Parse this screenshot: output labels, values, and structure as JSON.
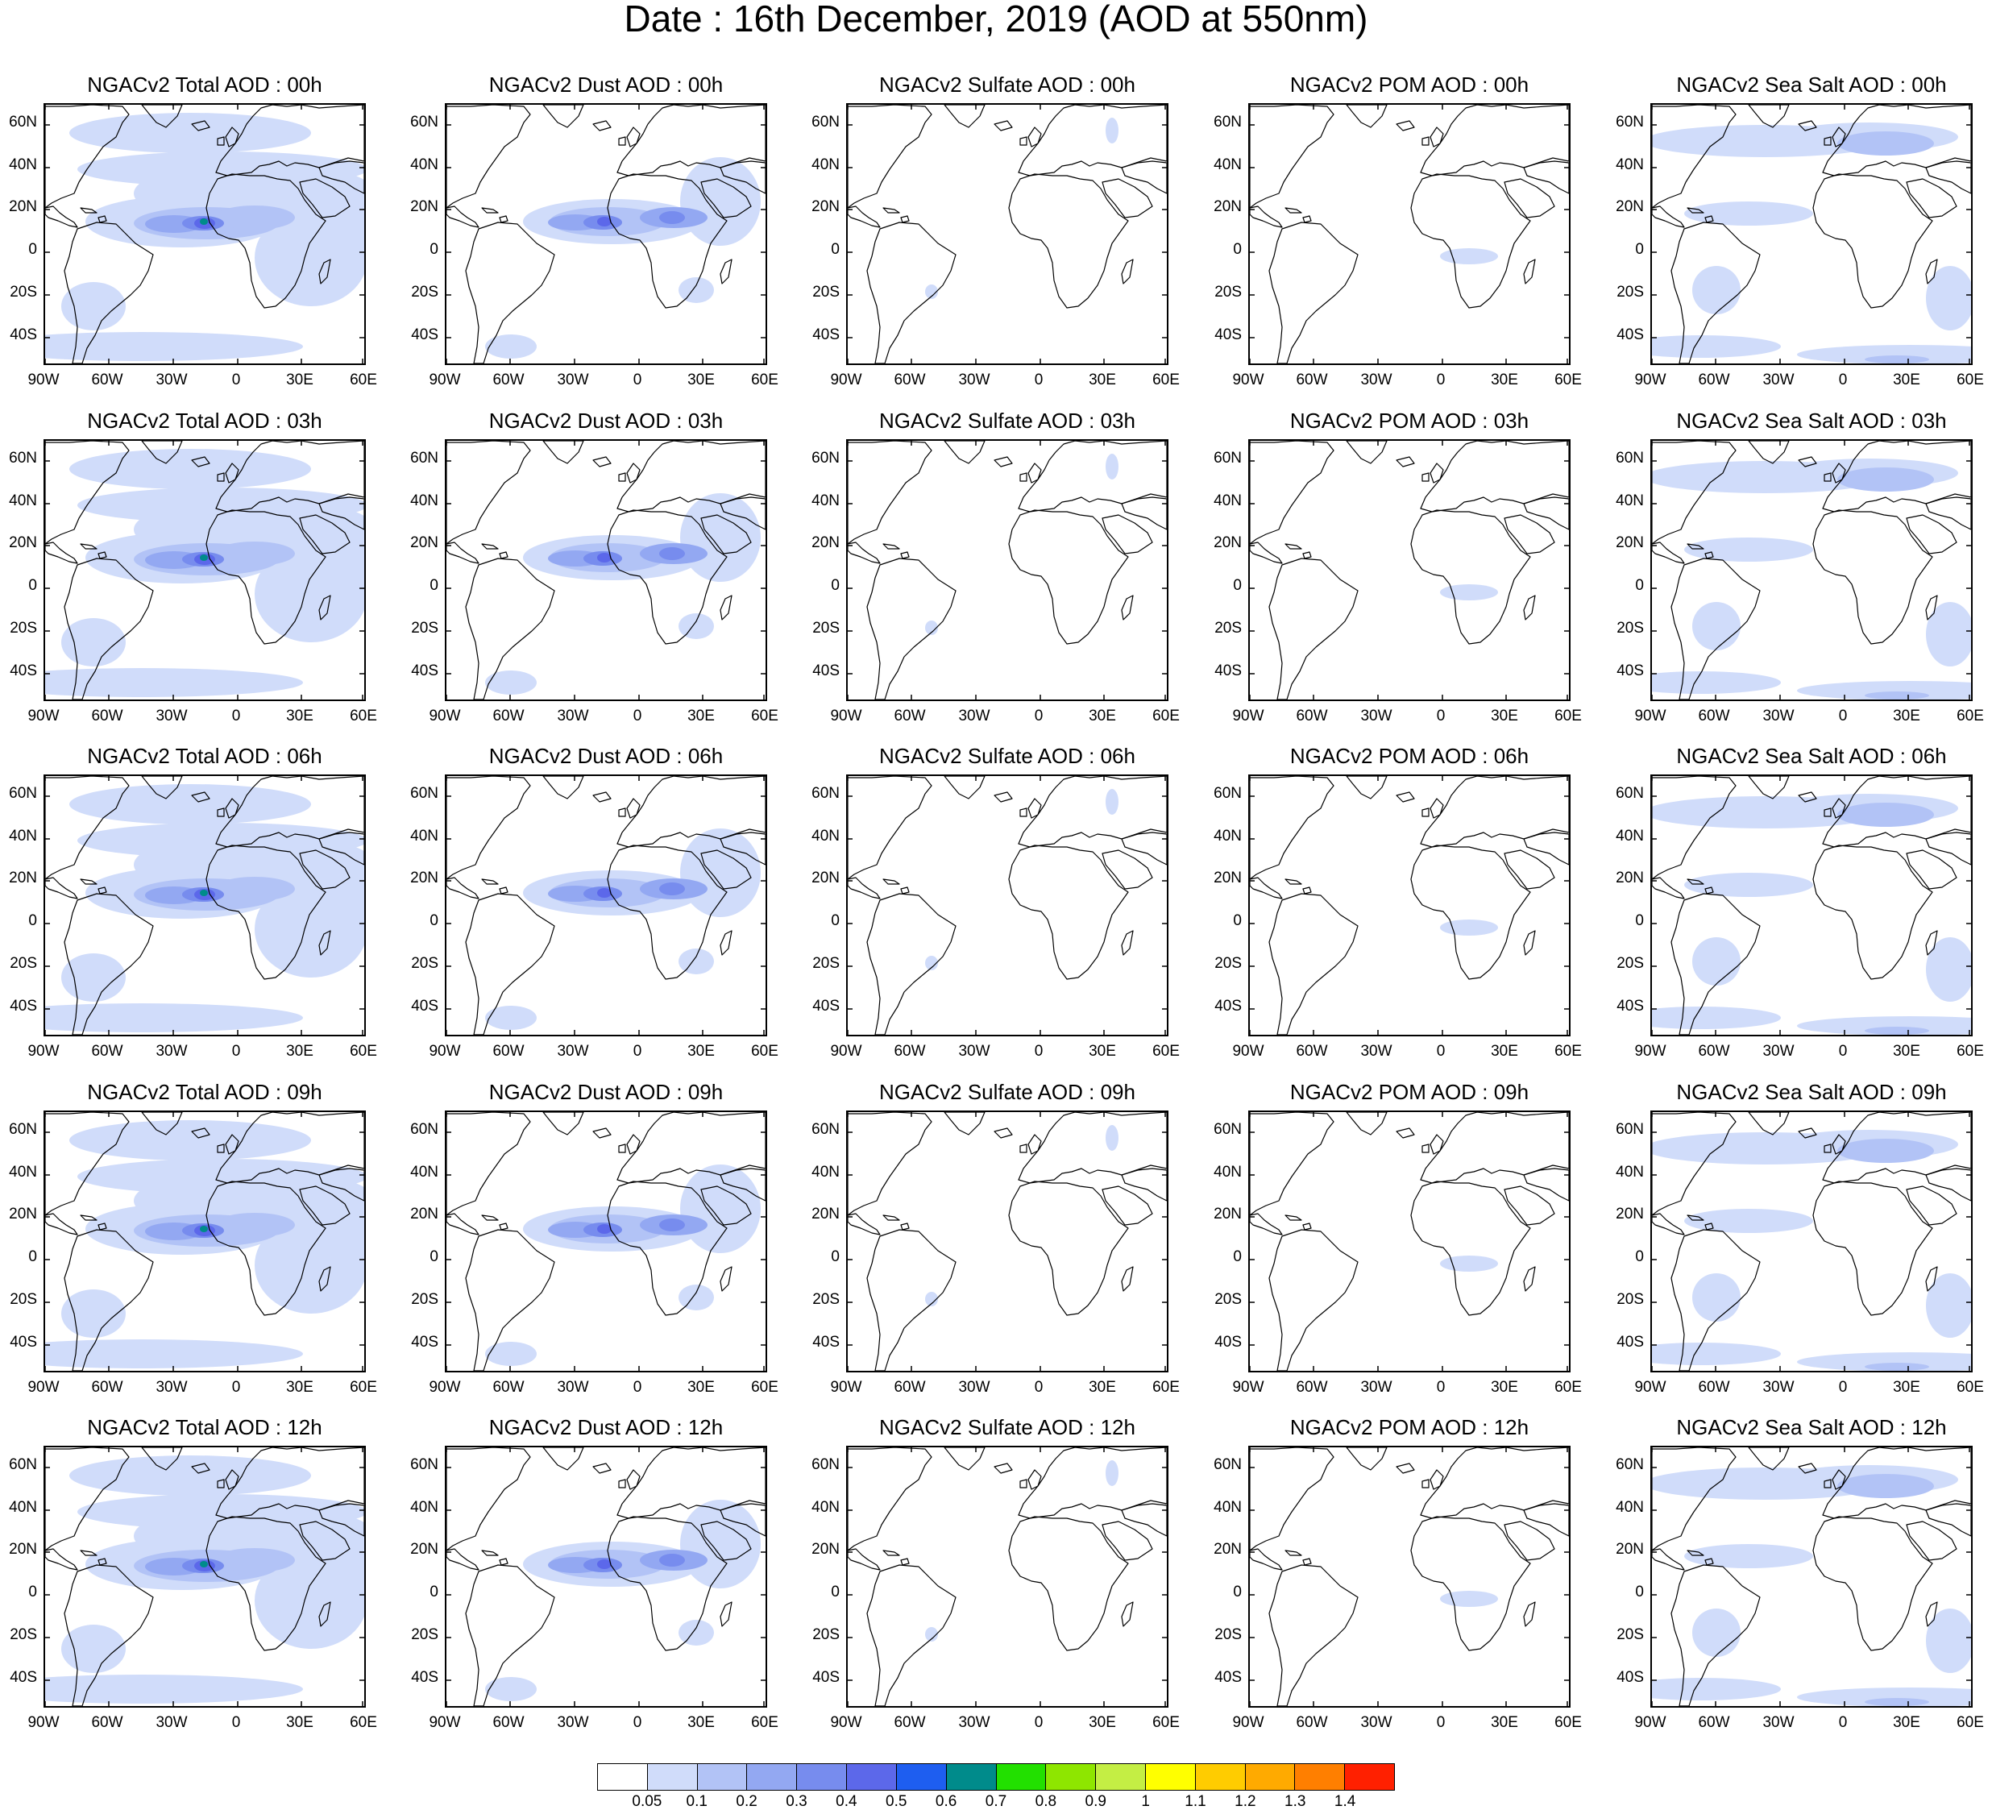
{
  "title": "Date : 16th December, 2019 (AOD at 550nm)",
  "map_axes": {
    "lat_labels": [
      "60N",
      "40N",
      "20N",
      "0",
      "20S",
      "40S"
    ],
    "lon_labels": [
      "90W",
      "60W",
      "30W",
      "0",
      "30E",
      "60E"
    ]
  },
  "panel_titles": [
    [
      "NGACv2 Total AOD : 00h",
      "NGACv2 Dust AOD : 00h",
      "NGACv2 Sulfate AOD : 00h",
      "NGACv2 POM AOD : 00h",
      "NGACv2 Sea Salt AOD : 00h"
    ],
    [
      "NGACv2 Total AOD : 03h",
      "NGACv2 Dust AOD : 03h",
      "NGACv2 Sulfate AOD : 03h",
      "NGACv2 POM AOD : 03h",
      "NGACv2 Sea Salt AOD : 03h"
    ],
    [
      "NGACv2 Total AOD : 06h",
      "NGACv2 Dust AOD : 06h",
      "NGACv2 Sulfate AOD : 06h",
      "NGACv2 POM AOD : 06h",
      "NGACv2 Sea Salt AOD : 06h"
    ],
    [
      "NGACv2 Total AOD : 09h",
      "NGACv2 Dust AOD : 09h",
      "NGACv2 Sulfate AOD : 09h",
      "NGACv2 POM AOD : 09h",
      "NGACv2 Sea Salt  AOD : 09h"
    ],
    [
      "NGACv2 Total AOD  : 12h",
      "NGACv2 Dust AOD : 12h",
      "NGACv2 Sulfate AOD : 12h",
      "NGACv2 POM  AOD : 12h",
      "NGACv2 Sea Salt  AOD : 12h"
    ]
  ],
  "colorbar": {
    "colors": [
      "#ffffff",
      "#d0dcfa",
      "#b2c3f6",
      "#93a8f2",
      "#778cee",
      "#5c68ea",
      "#1e5ef0",
      "#008b8b",
      "#22e000",
      "#8ee600",
      "#c4ee44",
      "#ffff00",
      "#ffcc00",
      "#ffaa00",
      "#ff7f00",
      "#ff2000"
    ],
    "labels": [
      "0.05",
      "0.1",
      "0.2",
      "0.3",
      "0.4",
      "0.5",
      "0.6",
      "0.7",
      "0.8",
      "0.9",
      "1",
      "1.1",
      "1.2",
      "1.3",
      "1.4"
    ]
  }
}
